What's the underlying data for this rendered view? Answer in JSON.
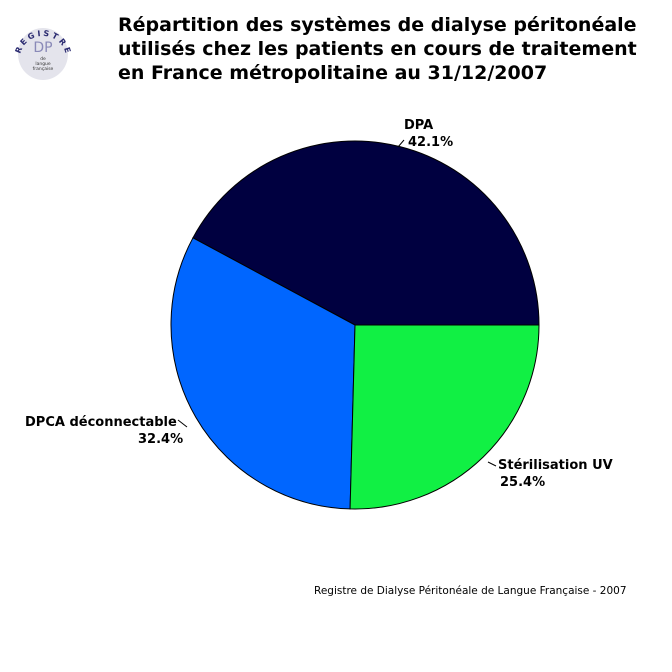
{
  "logo": {
    "arc_text": "REGISTRE",
    "monogram": "DP",
    "line1": "de",
    "line2": "langue",
    "line3": "française"
  },
  "title_lines": [
    "Répartition des systèmes de dialyse péritonéale",
    "utilisés chez les patients en cours de traitement",
    "en France métropolitaine au 31/12/2007"
  ],
  "footer": "Registre de Dialyse Péritonéale de Langue Française - 2007",
  "chart_data": {
    "type": "pie",
    "title": "Répartition des systèmes de dialyse péritonéale utilisés chez les patients en cours de traitement en France métropolitaine au 31/12/2007",
    "start_angle_deg": 0,
    "direction": "counterclockwise",
    "slices": [
      {
        "label": "DPA",
        "value": 42.1,
        "value_label": "42.1%",
        "color": "#000040"
      },
      {
        "label": "DPCA déconnectable",
        "value": 32.4,
        "value_label": "32.4%",
        "color": "#0066ff"
      },
      {
        "label": "Stérilisation UV",
        "value": 25.4,
        "value_label": "25.4%",
        "color": "#11f044"
      }
    ]
  }
}
